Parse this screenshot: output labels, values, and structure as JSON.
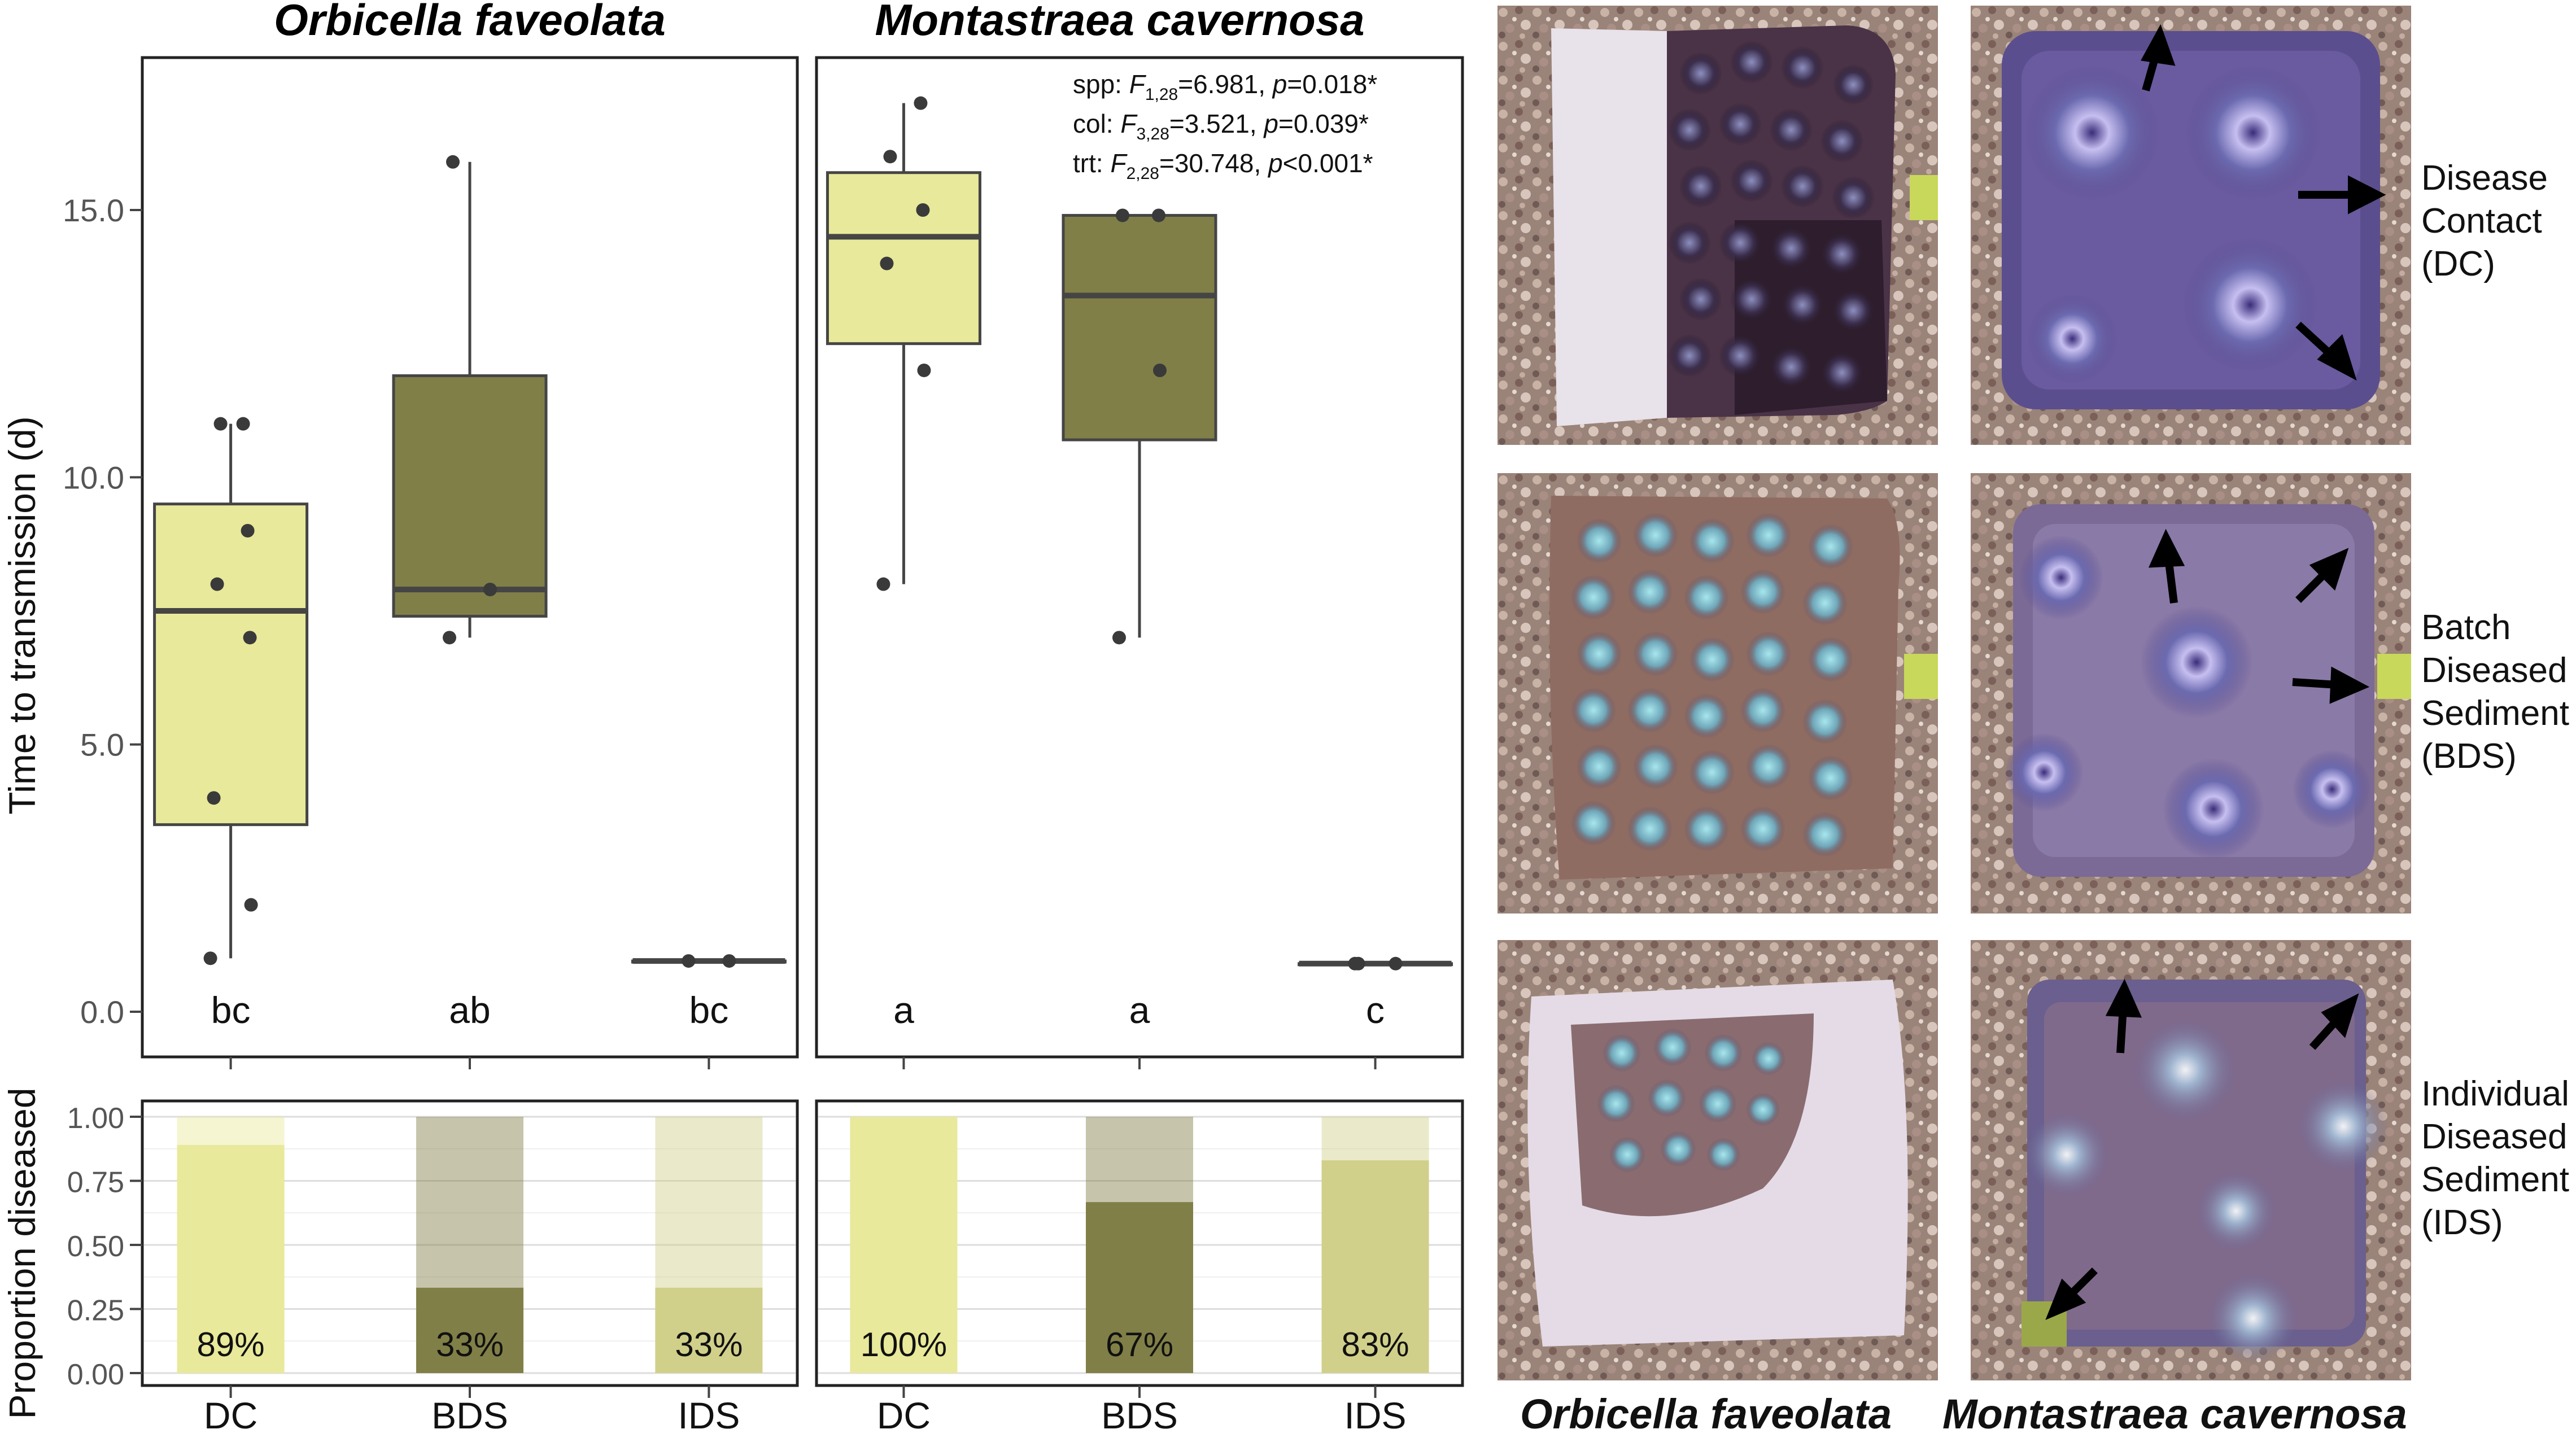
{
  "figure": {
    "species": [
      "Orbicella faveolata",
      "Montastraea cavernosa"
    ],
    "treatments": [
      "DC",
      "BDS",
      "IDS"
    ],
    "colors": {
      "of_fill": "#e8e99a",
      "mc_fill": "#807f47",
      "ids_of_bar": "#d1d08a",
      "box_stroke": "#454545",
      "point": "#3a3a3a",
      "grid": "#dddddd"
    }
  },
  "chart_data": [
    {
      "type": "box",
      "panel": "Orbicella faveolata",
      "title": "Orbicella faveolata",
      "ylabel": "Time to transmission (d)",
      "ylim": [
        0,
        18
      ],
      "yticks": [
        "0.0",
        "5.0",
        "10.0",
        "15.0"
      ],
      "categories": [
        "DC",
        "BDS",
        "IDS"
      ],
      "groups": [
        {
          "name": "DC",
          "min": 1,
          "q1": 3.5,
          "median": 7.5,
          "q3": 9.5,
          "max": 11,
          "points": [
            1,
            2,
            4,
            7,
            8,
            9,
            11,
            11
          ],
          "letter": "bc"
        },
        {
          "name": "BDS",
          "min": 7,
          "q1": 7.4,
          "median": 7.9,
          "q3": 11.9,
          "max": 15.9,
          "points": [
            7,
            7.9,
            15.9
          ],
          "letter": "ab"
        },
        {
          "name": "IDS",
          "min": 0.95,
          "q1": 0.95,
          "median": 0.95,
          "q3": 0.95,
          "max": 0.95,
          "points": [
            0.95,
            0.95
          ],
          "letter": "bc"
        }
      ]
    },
    {
      "type": "box",
      "panel": "Montastraea cavernosa",
      "title": "Montastraea cavernosa",
      "ylim": [
        0,
        18
      ],
      "categories": [
        "DC",
        "BDS",
        "IDS"
      ],
      "stats": {
        "spp": {
          "prefix": "spp: ",
          "stat": "F",
          "df": "1,28",
          "value": "=6.981, ",
          "p": "p",
          "pval": "=0.018*"
        },
        "col": {
          "prefix": "col: ",
          "stat": "F",
          "df": "3,28",
          "value": "=3.521, ",
          "p": "p",
          "pval": "=0.039*"
        },
        "trt": {
          "prefix": "trt: ",
          "stat": "F",
          "df": "2,28",
          "value": "=30.748, ",
          "p": "p",
          "pval": "<0.001*"
        }
      },
      "groups": [
        {
          "name": "DC",
          "min": 8,
          "q1": 12.5,
          "median": 14.5,
          "q3": 15.7,
          "max": 17,
          "points": [
            8,
            12,
            14,
            15,
            16,
            17
          ],
          "letter": "a"
        },
        {
          "name": "BDS",
          "min": 7,
          "q1": 10.7,
          "median": 13.4,
          "q3": 14.9,
          "max": 14.9,
          "points": [
            7,
            12,
            14.9,
            14.9
          ],
          "letter": "a"
        },
        {
          "name": "IDS",
          "min": 0.9,
          "q1": 0.9,
          "median": 0.9,
          "q3": 0.9,
          "max": 0.9,
          "points": [
            0.9,
            0.9,
            0.9
          ],
          "letter": "c"
        }
      ]
    },
    {
      "type": "bar",
      "panel": "Orbicella faveolata",
      "ylabel": "Proportion diseased",
      "ylim": [
        0,
        1
      ],
      "yticks": [
        "0.00",
        "0.25",
        "0.50",
        "0.75",
        "1.00"
      ],
      "categories": [
        "DC",
        "BDS",
        "IDS"
      ],
      "values": [
        0.89,
        0.333,
        0.333
      ],
      "labels": [
        "89%",
        "33%",
        "33%"
      ]
    },
    {
      "type": "bar",
      "panel": "Montastraea cavernosa",
      "ylim": [
        0,
        1
      ],
      "categories": [
        "DC",
        "BDS",
        "IDS"
      ],
      "values": [
        1.0,
        0.667,
        0.83
      ],
      "labels": [
        "100%",
        "67%",
        "83%"
      ]
    }
  ],
  "photos": {
    "treatment_labels": [
      [
        "Disease",
        "Contact",
        "(DC)"
      ],
      [
        "Batch",
        "Diseased",
        "Sediment",
        "(BDS)"
      ],
      [
        "Individual",
        "Diseased",
        "Sediment",
        "(IDS)"
      ]
    ],
    "captions": [
      "Orbicella faveolata",
      "Montastraea cavernosa"
    ]
  }
}
